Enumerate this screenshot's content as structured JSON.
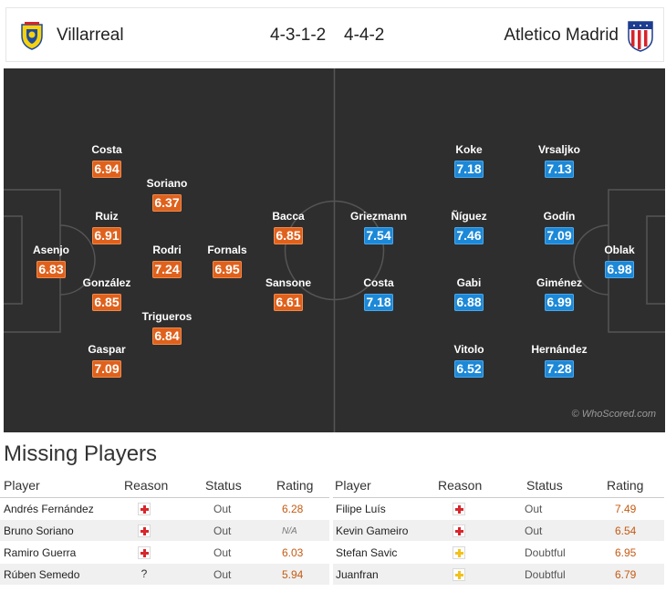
{
  "header": {
    "home_team": "Villarreal",
    "away_team": "Atletico Madrid",
    "home_formation": "4-3-1-2",
    "away_formation": "4-4-2"
  },
  "pitch": {
    "home_players": [
      {
        "name": "Asenjo",
        "rating": "6.83"
      },
      {
        "name": "Costa",
        "rating": "6.94"
      },
      {
        "name": "Ruiz",
        "rating": "6.91"
      },
      {
        "name": "González",
        "rating": "6.85"
      },
      {
        "name": "Gaspar",
        "rating": "7.09"
      },
      {
        "name": "Soriano",
        "rating": "6.37"
      },
      {
        "name": "Rodri",
        "rating": "7.24"
      },
      {
        "name": "Trigueros",
        "rating": "6.84"
      },
      {
        "name": "Fornals",
        "rating": "6.95"
      },
      {
        "name": "Bacca",
        "rating": "6.85"
      },
      {
        "name": "Sansone",
        "rating": "6.61"
      }
    ],
    "away_players": [
      {
        "name": "Griezmann",
        "rating": "7.54"
      },
      {
        "name": "Costa",
        "rating": "7.18"
      },
      {
        "name": "Koke",
        "rating": "7.18"
      },
      {
        "name": "Ñíguez",
        "rating": "7.46"
      },
      {
        "name": "Gabi",
        "rating": "6.88"
      },
      {
        "name": "Vitolo",
        "rating": "6.52"
      },
      {
        "name": "Vrsaljko",
        "rating": "7.13"
      },
      {
        "name": "Godín",
        "rating": "7.09"
      },
      {
        "name": "Giménez",
        "rating": "6.99"
      },
      {
        "name": "Hernández",
        "rating": "7.28"
      },
      {
        "name": "Oblak",
        "rating": "6.98"
      }
    ],
    "watermark": "© WhoScored.com",
    "colors": {
      "home_rating": "#e0611c",
      "away_rating": "#1c88d8",
      "pitch": "#2e2e2e"
    }
  },
  "missing": {
    "title": "Missing Players",
    "columns": {
      "player": "Player",
      "reason": "Reason",
      "status": "Status",
      "rating": "Rating"
    },
    "home": [
      {
        "player": "Andrés Fernández",
        "reason_icon": "injury-icon",
        "status": "Out",
        "rating": "6.28"
      },
      {
        "player": "Bruno Soriano",
        "reason_icon": "injury-icon",
        "status": "Out",
        "rating": "N/A"
      },
      {
        "player": "Ramiro Guerra",
        "reason_icon": "injury-icon",
        "status": "Out",
        "rating": "6.03"
      },
      {
        "player": "Rúben Semedo",
        "reason_icon": "unknown-reason-icon",
        "reason_text": "?",
        "status": "Out",
        "rating": "5.94"
      }
    ],
    "away": [
      {
        "player": "Filipe Luís",
        "reason_icon": "injury-icon",
        "status": "Out",
        "rating": "7.49"
      },
      {
        "player": "Kevin Gameiro",
        "reason_icon": "injury-icon",
        "status": "Out",
        "rating": "6.54"
      },
      {
        "player": "Stefan Savic",
        "reason_icon": "doubtful-icon",
        "status": "Doubtful",
        "rating": "6.95"
      },
      {
        "player": "Juanfran",
        "reason_icon": "doubtful-icon",
        "status": "Doubtful",
        "rating": "6.79"
      }
    ]
  }
}
